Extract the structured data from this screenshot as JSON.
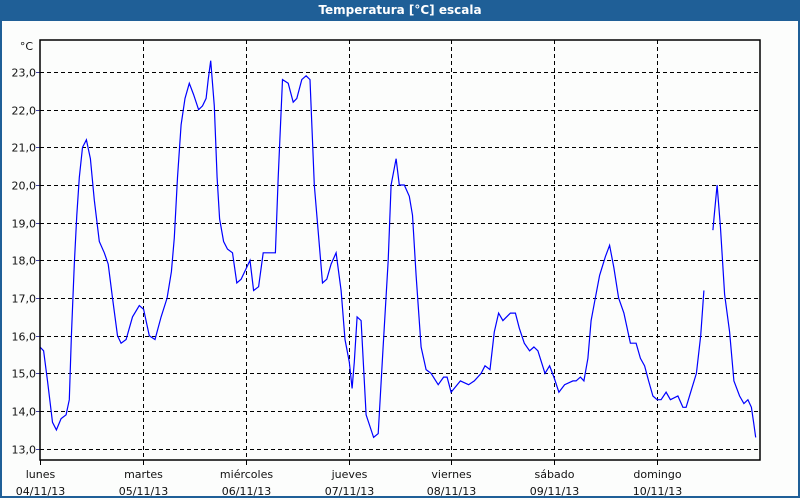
{
  "window": {
    "title": "Temperatura [°C] escala"
  },
  "chart_data": {
    "type": "line",
    "title": "Temperatura [°C] escala",
    "ylabel": "°C",
    "xlabel": "",
    "ylim": [
      12.7,
      23.85
    ],
    "xlim": [
      "2013-11-04 00:00",
      "2013-11-11 00:00"
    ],
    "grid": true,
    "line_color": "#0000ff",
    "y_ticks": [
      {
        "value": 13,
        "label": "13,0"
      },
      {
        "value": 14,
        "label": "14,0"
      },
      {
        "value": 15,
        "label": "15,0"
      },
      {
        "value": 16,
        "label": "16,0"
      },
      {
        "value": 17,
        "label": "17,0"
      },
      {
        "value": 18,
        "label": "18,0"
      },
      {
        "value": 19,
        "label": "19,0"
      },
      {
        "value": 20,
        "label": "20,0"
      },
      {
        "value": 21,
        "label": "21,0"
      },
      {
        "value": 22,
        "label": "22,0"
      },
      {
        "value": 23,
        "label": "23,0"
      }
    ],
    "x_ticks": [
      {
        "value": "2013-11-04 00:00",
        "day": "lunes",
        "date": "04/11/13"
      },
      {
        "value": "2013-11-05 00:00",
        "day": "martes",
        "date": "05/11/13"
      },
      {
        "value": "2013-11-06 00:00",
        "day": "miércoles",
        "date": "06/11/13"
      },
      {
        "value": "2013-11-07 00:00",
        "day": "jueves",
        "date": "07/11/13"
      },
      {
        "value": "2013-11-08 00:00",
        "day": "viernes",
        "date": "08/11/13"
      },
      {
        "value": "2013-11-09 00:00",
        "day": "sábado",
        "date": "09/11/13"
      },
      {
        "value": "2013-11-10 00:00",
        "day": "domingo",
        "date": "10/11/13"
      }
    ],
    "points": [
      [
        "2013-11-04 00:00",
        15.7
      ],
      [
        "2013-11-04 00:50",
        15.6
      ],
      [
        "2013-11-04 01:45",
        14.8
      ],
      [
        "2013-11-04 02:55",
        13.7
      ],
      [
        "2013-11-04 03:50",
        13.5
      ],
      [
        "2013-11-04 04:55",
        13.8
      ],
      [
        "2013-11-04 06:05",
        13.9
      ],
      [
        "2013-11-04 06:50",
        14.3
      ],
      [
        "2013-11-04 07:20",
        16.0
      ],
      [
        "2013-11-04 08:00",
        17.9
      ],
      [
        "2013-11-04 08:35",
        19.2
      ],
      [
        "2013-11-04 09:10",
        20.2
      ],
      [
        "2013-11-04 09:55",
        21.0
      ],
      [
        "2013-11-04 10:50",
        21.2
      ],
      [
        "2013-11-04 11:45",
        20.7
      ],
      [
        "2013-11-04 12:40",
        19.6
      ],
      [
        "2013-11-04 13:50",
        18.5
      ],
      [
        "2013-11-04 15:00",
        18.2
      ],
      [
        "2013-11-04 15:55",
        17.9
      ],
      [
        "2013-11-04 16:55",
        17.0
      ],
      [
        "2013-11-04 18:05",
        16.0
      ],
      [
        "2013-11-04 18:55",
        15.8
      ],
      [
        "2013-11-04 20:05",
        15.9
      ],
      [
        "2013-11-04 21:35",
        16.5
      ],
      [
        "2013-11-04 23:10",
        16.8
      ],
      [
        "2013-11-05 00:10",
        16.7
      ],
      [
        "2013-11-05 01:30",
        16.0
      ],
      [
        "2013-11-05 02:50",
        15.9
      ],
      [
        "2013-11-05 04:15",
        16.5
      ],
      [
        "2013-11-05 05:40",
        17.0
      ],
      [
        "2013-11-05 06:40",
        17.7
      ],
      [
        "2013-11-05 07:20",
        18.6
      ],
      [
        "2013-11-05 08:05",
        20.2
      ],
      [
        "2013-11-05 08:55",
        21.6
      ],
      [
        "2013-11-05 09:50",
        22.3
      ],
      [
        "2013-11-05 10:50",
        22.7
      ],
      [
        "2013-11-05 11:50",
        22.4
      ],
      [
        "2013-11-05 13:00",
        22.0
      ],
      [
        "2013-11-05 13:55",
        22.1
      ],
      [
        "2013-11-05 14:45",
        22.3
      ],
      [
        "2013-11-05 15:15",
        22.8
      ],
      [
        "2013-11-05 15:50",
        23.3
      ],
      [
        "2013-11-05 16:40",
        22.1
      ],
      [
        "2013-11-05 17:20",
        20.2
      ],
      [
        "2013-11-05 17:55",
        19.1
      ],
      [
        "2013-11-05 18:50",
        18.5
      ],
      [
        "2013-11-05 19:45",
        18.3
      ],
      [
        "2013-11-05 20:55",
        18.2
      ],
      [
        "2013-11-05 21:55",
        17.4
      ],
      [
        "2013-11-05 22:55",
        17.5
      ],
      [
        "2013-11-06 01:00",
        18.0
      ],
      [
        "2013-11-06 01:50",
        17.2
      ],
      [
        "2013-11-06 03:00",
        17.3
      ],
      [
        "2013-11-06 04:05",
        18.2
      ],
      [
        "2013-11-06 05:05",
        18.2
      ],
      [
        "2013-11-06 06:55",
        18.2
      ],
      [
        "2013-11-06 07:35",
        20.2
      ],
      [
        "2013-11-06 08:35",
        22.8
      ],
      [
        "2013-11-06 09:55",
        22.7
      ],
      [
        "2013-11-06 11:05",
        22.2
      ],
      [
        "2013-11-06 11:55",
        22.3
      ],
      [
        "2013-11-06 13:05",
        22.8
      ],
      [
        "2013-11-06 14:05",
        22.9
      ],
      [
        "2013-11-06 15:00",
        22.8
      ],
      [
        "2013-11-06 16:00",
        20.0
      ],
      [
        "2013-11-06 17:55",
        17.4
      ],
      [
        "2013-11-06 18:55",
        17.5
      ],
      [
        "2013-11-06 19:55",
        17.9
      ],
      [
        "2013-11-06 21:05",
        18.2
      ],
      [
        "2013-11-06 22:15",
        17.2
      ],
      [
        "2013-11-06 23:10",
        15.9
      ],
      [
        "2013-11-07 00:10",
        15.3
      ],
      [
        "2013-11-07 00:50",
        14.6
      ],
      [
        "2013-11-07 01:20",
        15.3
      ],
      [
        "2013-11-07 02:00",
        16.5
      ],
      [
        "2013-11-07 02:55",
        16.4
      ],
      [
        "2013-11-07 04:05",
        13.9
      ],
      [
        "2013-11-07 05:50",
        13.3
      ],
      [
        "2013-11-07 06:55",
        13.4
      ],
      [
        "2013-11-07 08:00",
        15.6
      ],
      [
        "2013-11-07 09:15",
        18.0
      ],
      [
        "2013-11-07 09:55",
        20.0
      ],
      [
        "2013-11-07 11:05",
        20.7
      ],
      [
        "2013-11-07 11:50",
        20.0
      ],
      [
        "2013-11-07 13:00",
        20.0
      ],
      [
        "2013-11-07 14:10",
        19.7
      ],
      [
        "2013-11-07 14:55",
        19.2
      ],
      [
        "2013-11-07 15:45",
        17.6
      ],
      [
        "2013-11-07 16:55",
        15.7
      ],
      [
        "2013-11-07 18:05",
        15.1
      ],
      [
        "2013-11-07 19:15",
        15.0
      ],
      [
        "2013-11-07 20:55",
        14.7
      ],
      [
        "2013-11-07 22:10",
        14.9
      ],
      [
        "2013-11-07 23:00",
        14.9
      ],
      [
        "2013-11-07 23:55",
        14.5
      ],
      [
        "2013-11-08 02:05",
        14.8
      ],
      [
        "2013-11-08 04:00",
        14.7
      ],
      [
        "2013-11-08 05:20",
        14.8
      ],
      [
        "2013-11-08 06:55",
        15.0
      ],
      [
        "2013-11-08 07:50",
        15.2
      ],
      [
        "2013-11-08 09:00",
        15.1
      ],
      [
        "2013-11-08 10:00",
        16.1
      ],
      [
        "2013-11-08 11:00",
        16.6
      ],
      [
        "2013-11-08 12:00",
        16.4
      ],
      [
        "2013-11-08 13:45",
        16.6
      ],
      [
        "2013-11-08 14:55",
        16.6
      ],
      [
        "2013-11-08 15:50",
        16.2
      ],
      [
        "2013-11-08 17:00",
        15.8
      ],
      [
        "2013-11-08 18:15",
        15.6
      ],
      [
        "2013-11-08 19:15",
        15.7
      ],
      [
        "2013-11-08 20:10",
        15.6
      ],
      [
        "2013-11-08 21:50",
        15.0
      ],
      [
        "2013-11-08 22:55",
        15.2
      ],
      [
        "2013-11-08 23:55",
        14.9
      ],
      [
        "2013-11-09 01:05",
        14.5
      ],
      [
        "2013-11-09 02:25",
        14.7
      ],
      [
        "2013-11-09 04:20",
        14.8
      ],
      [
        "2013-11-09 05:05",
        14.8
      ],
      [
        "2013-11-09 06:05",
        14.9
      ],
      [
        "2013-11-09 06:55",
        14.8
      ],
      [
        "2013-11-09 07:50",
        15.4
      ],
      [
        "2013-11-09 08:35",
        16.4
      ],
      [
        "2013-11-09 09:25",
        16.9
      ],
      [
        "2013-11-09 10:35",
        17.6
      ],
      [
        "2013-11-09 11:55",
        18.1
      ],
      [
        "2013-11-09 12:55",
        18.4
      ],
      [
        "2013-11-09 13:55",
        17.8
      ],
      [
        "2013-11-09 15:00",
        17.0
      ],
      [
        "2013-11-09 16:15",
        16.6
      ],
      [
        "2013-11-09 17:45",
        15.8
      ],
      [
        "2013-11-09 19:05",
        15.8
      ],
      [
        "2013-11-09 20:05",
        15.4
      ],
      [
        "2013-11-09 21:05",
        15.2
      ],
      [
        "2013-11-09 22:00",
        14.8
      ],
      [
        "2013-11-09 23:00",
        14.4
      ],
      [
        "2013-11-10 00:00",
        14.3
      ],
      [
        "2013-11-10 00:55",
        14.3
      ],
      [
        "2013-11-10 02:05",
        14.5
      ],
      [
        "2013-11-10 03:05",
        14.3
      ],
      [
        "2013-11-10 04:50",
        14.4
      ],
      [
        "2013-11-10 06:00",
        14.1
      ],
      [
        "2013-11-10 06:45",
        14.1
      ],
      [
        "2013-11-10 08:05",
        14.6
      ],
      [
        "2013-11-10 09:10",
        15.0
      ],
      [
        "2013-11-10 10:10",
        16.0
      ],
      [
        "2013-11-10 10:55",
        17.2
      ],
      [
        "2013-11-10 12:00",
        null
      ],
      [
        "2013-11-10 13:00",
        18.8
      ],
      [
        "2013-11-10 13:25",
        19.3
      ],
      [
        "2013-11-10 14:00",
        20.0
      ],
      [
        "2013-11-10 14:45",
        18.9
      ],
      [
        "2013-11-10 15:45",
        17.1
      ],
      [
        "2013-11-10 16:55",
        16.1
      ],
      [
        "2013-11-10 17:55",
        14.8
      ],
      [
        "2013-11-10 19:15",
        14.4
      ],
      [
        "2013-11-10 20:15",
        14.2
      ],
      [
        "2013-11-10 21:10",
        14.3
      ],
      [
        "2013-11-10 22:00",
        14.1
      ],
      [
        "2013-11-10 22:30",
        13.7
      ],
      [
        "2013-11-10 23:00",
        13.3
      ]
    ]
  }
}
